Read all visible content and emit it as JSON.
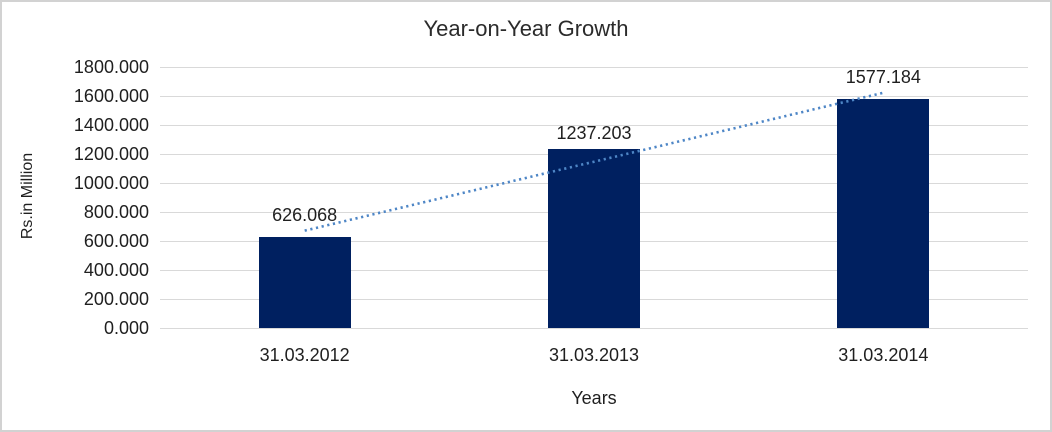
{
  "chart_data": {
    "type": "bar",
    "title": "Year-on-Year Growth",
    "xlabel": "Years",
    "ylabel": "Rs.in Million",
    "categories": [
      "31.03.2012",
      "31.03.2013",
      "31.03.2014"
    ],
    "values": [
      626.068,
      1237.203,
      1577.184
    ],
    "data_labels": [
      "626.068",
      "1237.203",
      "1577.184"
    ],
    "ylim": [
      0,
      1800
    ],
    "ytick_step": 200,
    "ytick_labels": [
      "0.000",
      "200.000",
      "400.000",
      "600.000",
      "800.000",
      "1000.000",
      "1200.000",
      "1400.000",
      "1600.000",
      "1800.000"
    ],
    "grid": true,
    "legend": "none",
    "trendline": {
      "type": "linear",
      "style": "dotted"
    },
    "colors": {
      "bar": "#002060",
      "gridline": "#d9d9d9",
      "trendline": "#4e86c6",
      "text": "#1f1f1f",
      "frame_border": "#d2d2d2",
      "background": "#ffffff"
    }
  }
}
